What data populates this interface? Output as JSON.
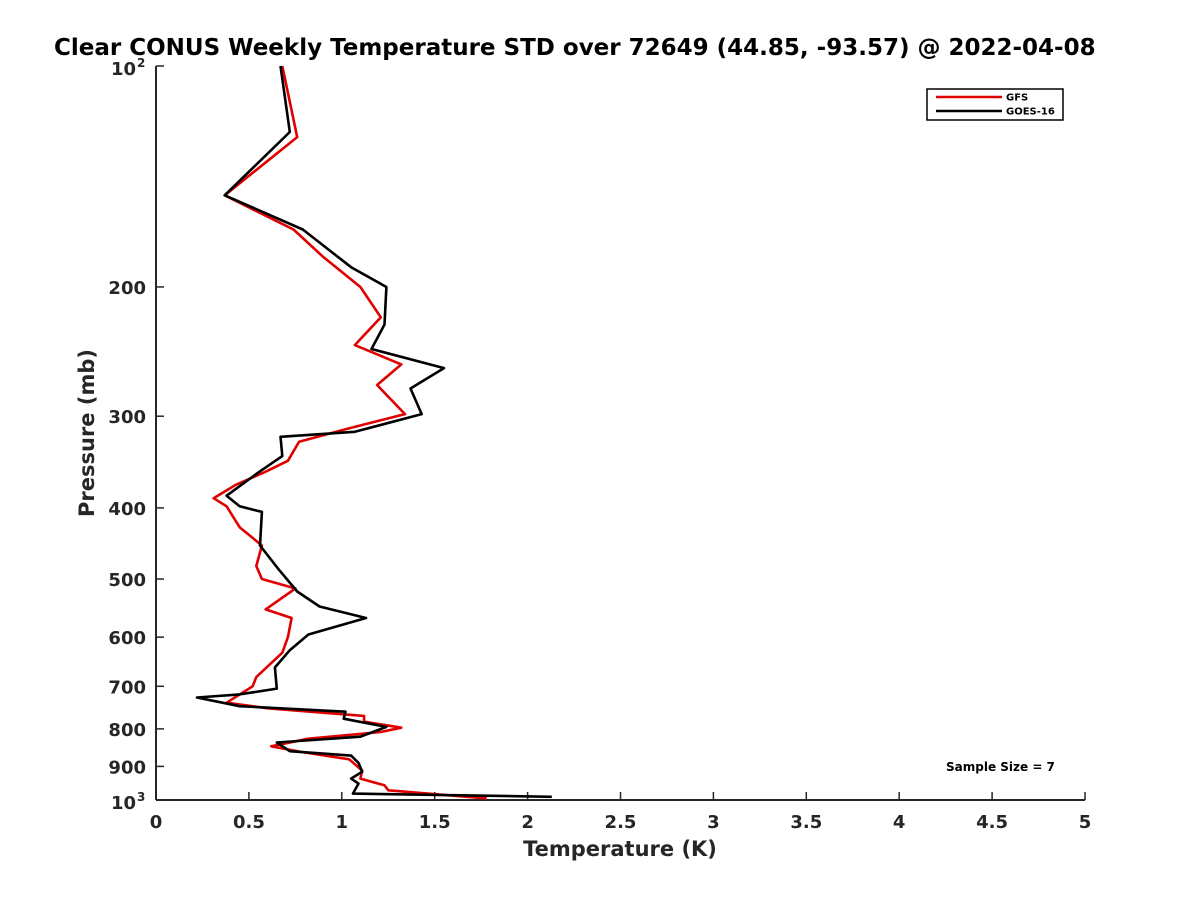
{
  "chart_data": {
    "type": "line",
    "title": "Clear CONUS Weekly Temperature STD over 72649 (44.85, -93.57) @ 2022-04-08",
    "xlabel": "Temperature (K)",
    "ylabel": "Pressure (mb)",
    "xlim": [
      0,
      5
    ],
    "ylim": [
      100,
      1000
    ],
    "y_scale": "log",
    "y_reversed": true,
    "x_ticks": [
      0,
      0.5,
      1,
      1.5,
      2,
      2.5,
      3,
      3.5,
      4,
      4.5,
      5
    ],
    "x_tick_labels": [
      "0",
      "0.5",
      "1",
      "1.5",
      "2",
      "2.5",
      "3",
      "3.5",
      "4",
      "4.5",
      "5"
    ],
    "y_ticks": [
      {
        "value": 100,
        "base": "10",
        "exp": "2"
      },
      {
        "value": 200,
        "label": "200"
      },
      {
        "value": 300,
        "label": "300"
      },
      {
        "value": 400,
        "label": "400"
      },
      {
        "value": 500,
        "label": "500"
      },
      {
        "value": 600,
        "label": "600"
      },
      {
        "value": 700,
        "label": "700"
      },
      {
        "value": 800,
        "label": "800"
      },
      {
        "value": 900,
        "label": "900"
      },
      {
        "value": 1000,
        "base": "10",
        "exp": "3"
      }
    ],
    "grid": false,
    "legend_position": "top-right",
    "annotation": "Sample Size = 7",
    "series": [
      {
        "name": "GFS",
        "color": "#e00000",
        "points": [
          [
            0.68,
            100
          ],
          [
            0.76,
            125
          ],
          [
            0.37,
            150
          ],
          [
            0.74,
            167
          ],
          [
            0.9,
            182
          ],
          [
            1.1,
            200
          ],
          [
            1.21,
            220
          ],
          [
            1.07,
            240
          ],
          [
            1.32,
            255
          ],
          [
            1.19,
            272
          ],
          [
            1.34,
            298
          ],
          [
            1.03,
            312
          ],
          [
            0.77,
            325
          ],
          [
            0.71,
            345
          ],
          [
            0.58,
            358
          ],
          [
            0.43,
            372
          ],
          [
            0.31,
            388
          ],
          [
            0.38,
            398
          ],
          [
            0.45,
            425
          ],
          [
            0.57,
            450
          ],
          [
            0.54,
            480
          ],
          [
            0.57,
            500
          ],
          [
            0.75,
            515
          ],
          [
            0.59,
            550
          ],
          [
            0.73,
            565
          ],
          [
            0.71,
            600
          ],
          [
            0.68,
            630
          ],
          [
            0.54,
            680
          ],
          [
            0.52,
            700
          ],
          [
            0.38,
            737
          ],
          [
            0.6,
            750
          ],
          [
            1.12,
            768
          ],
          [
            1.12,
            782
          ],
          [
            1.32,
            797
          ],
          [
            1.21,
            808
          ],
          [
            0.82,
            825
          ],
          [
            0.62,
            845
          ],
          [
            0.78,
            860
          ],
          [
            1.04,
            880
          ],
          [
            1.11,
            912
          ],
          [
            1.1,
            935
          ],
          [
            1.23,
            955
          ],
          [
            1.25,
            970
          ],
          [
            1.78,
            995
          ]
        ]
      },
      {
        "name": "GOES-16",
        "color": "#000000",
        "points": [
          [
            0.67,
            100
          ],
          [
            0.72,
            123
          ],
          [
            0.37,
            150
          ],
          [
            0.79,
            167
          ],
          [
            1.05,
            188
          ],
          [
            1.24,
            200
          ],
          [
            1.23,
            225
          ],
          [
            1.16,
            243
          ],
          [
            1.55,
            258
          ],
          [
            1.37,
            275
          ],
          [
            1.43,
            298
          ],
          [
            1.07,
            315
          ],
          [
            0.67,
            320
          ],
          [
            0.68,
            340
          ],
          [
            0.55,
            358
          ],
          [
            0.38,
            385
          ],
          [
            0.45,
            398
          ],
          [
            0.57,
            405
          ],
          [
            0.56,
            450
          ],
          [
            0.66,
            485
          ],
          [
            0.76,
            520
          ],
          [
            0.88,
            545
          ],
          [
            1.13,
            565
          ],
          [
            0.82,
            595
          ],
          [
            0.72,
            625
          ],
          [
            0.64,
            660
          ],
          [
            0.65,
            705
          ],
          [
            0.45,
            718
          ],
          [
            0.22,
            725
          ],
          [
            0.45,
            745
          ],
          [
            1.02,
            758
          ],
          [
            1.01,
            775
          ],
          [
            1.24,
            795
          ],
          [
            1.1,
            820
          ],
          [
            0.65,
            835
          ],
          [
            0.72,
            858
          ],
          [
            1.05,
            870
          ],
          [
            1.09,
            890
          ],
          [
            1.11,
            915
          ],
          [
            1.05,
            935
          ],
          [
            1.09,
            950
          ],
          [
            1.06,
            980
          ],
          [
            2.13,
            990
          ]
        ]
      }
    ]
  }
}
